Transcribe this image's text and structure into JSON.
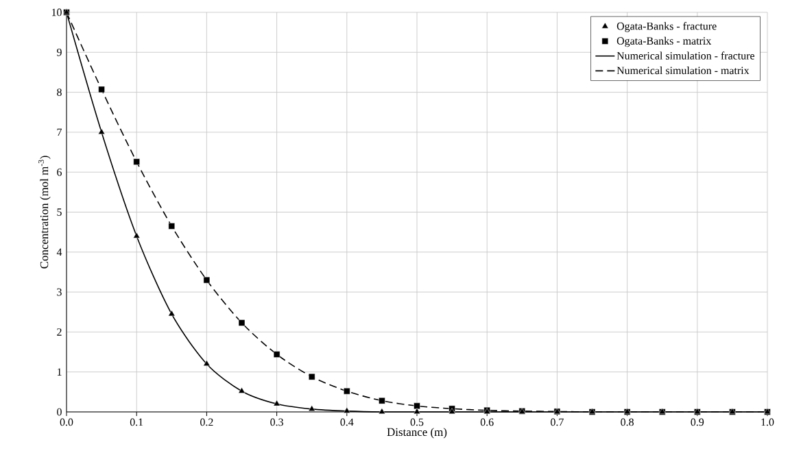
{
  "chart_data": {
    "type": "line",
    "xlabel": "Distance (m)",
    "ylabel": "Concentration (mol m$^{-3}$)",
    "x": [
      0,
      0.05,
      0.1,
      0.15,
      0.2,
      0.25,
      0.3,
      0.35,
      0.4,
      0.45,
      0.5,
      0.55,
      0.6,
      0.65,
      0.7,
      0.75,
      0.8,
      0.85,
      0.9,
      0.95,
      1.0
    ],
    "series": [
      {
        "name": "Ogata-Banks - fracture",
        "type": "scatter",
        "marker": "triangle",
        "color": "#000000",
        "values": [
          10,
          7.0,
          4.4,
          2.45,
          1.2,
          0.52,
          0.2,
          0.07,
          0.02,
          0,
          0,
          0,
          0,
          0,
          0,
          0,
          0,
          0,
          0,
          0,
          0
        ]
      },
      {
        "name": "Ogata-Banks - matrix",
        "type": "scatter",
        "marker": "square",
        "color": "#000000",
        "values": [
          10,
          8.07,
          6.26,
          4.65,
          3.3,
          2.23,
          1.44,
          0.88,
          0.52,
          0.28,
          0.15,
          0.08,
          0.04,
          0.02,
          0.01,
          0,
          0,
          0,
          0,
          0,
          0
        ]
      },
      {
        "name": "Numerical simulation - fracture",
        "line_style": "solid",
        "color": "#000000",
        "values": [
          10,
          7.0,
          4.4,
          2.45,
          1.2,
          0.52,
          0.2,
          0.07,
          0.02,
          0,
          0,
          0,
          0,
          0,
          0,
          0,
          0,
          0,
          0,
          0,
          0
        ]
      },
      {
        "name": "Numerical simulation - matrix",
        "line_style": "dashed",
        "color": "#000000",
        "values": [
          10,
          8.07,
          6.26,
          4.65,
          3.3,
          2.23,
          1.44,
          0.88,
          0.52,
          0.28,
          0.15,
          0.08,
          0.04,
          0.02,
          0.01,
          0,
          0,
          0,
          0,
          0,
          0
        ]
      }
    ],
    "xlim": [
      0,
      1.0
    ],
    "ylim": [
      0,
      10
    ],
    "xticks": [
      {
        "value": 0,
        "label": "0.0"
      },
      0.1,
      0.2,
      0.3,
      0.4,
      0.5,
      0.6,
      0.7,
      0.8,
      0.9,
      {
        "value": 1.0,
        "label": "1.0"
      }
    ],
    "yticks": [
      0,
      1,
      2,
      3,
      4,
      5,
      6,
      7,
      8,
      9,
      10
    ],
    "grid": true,
    "legend": "top right"
  }
}
